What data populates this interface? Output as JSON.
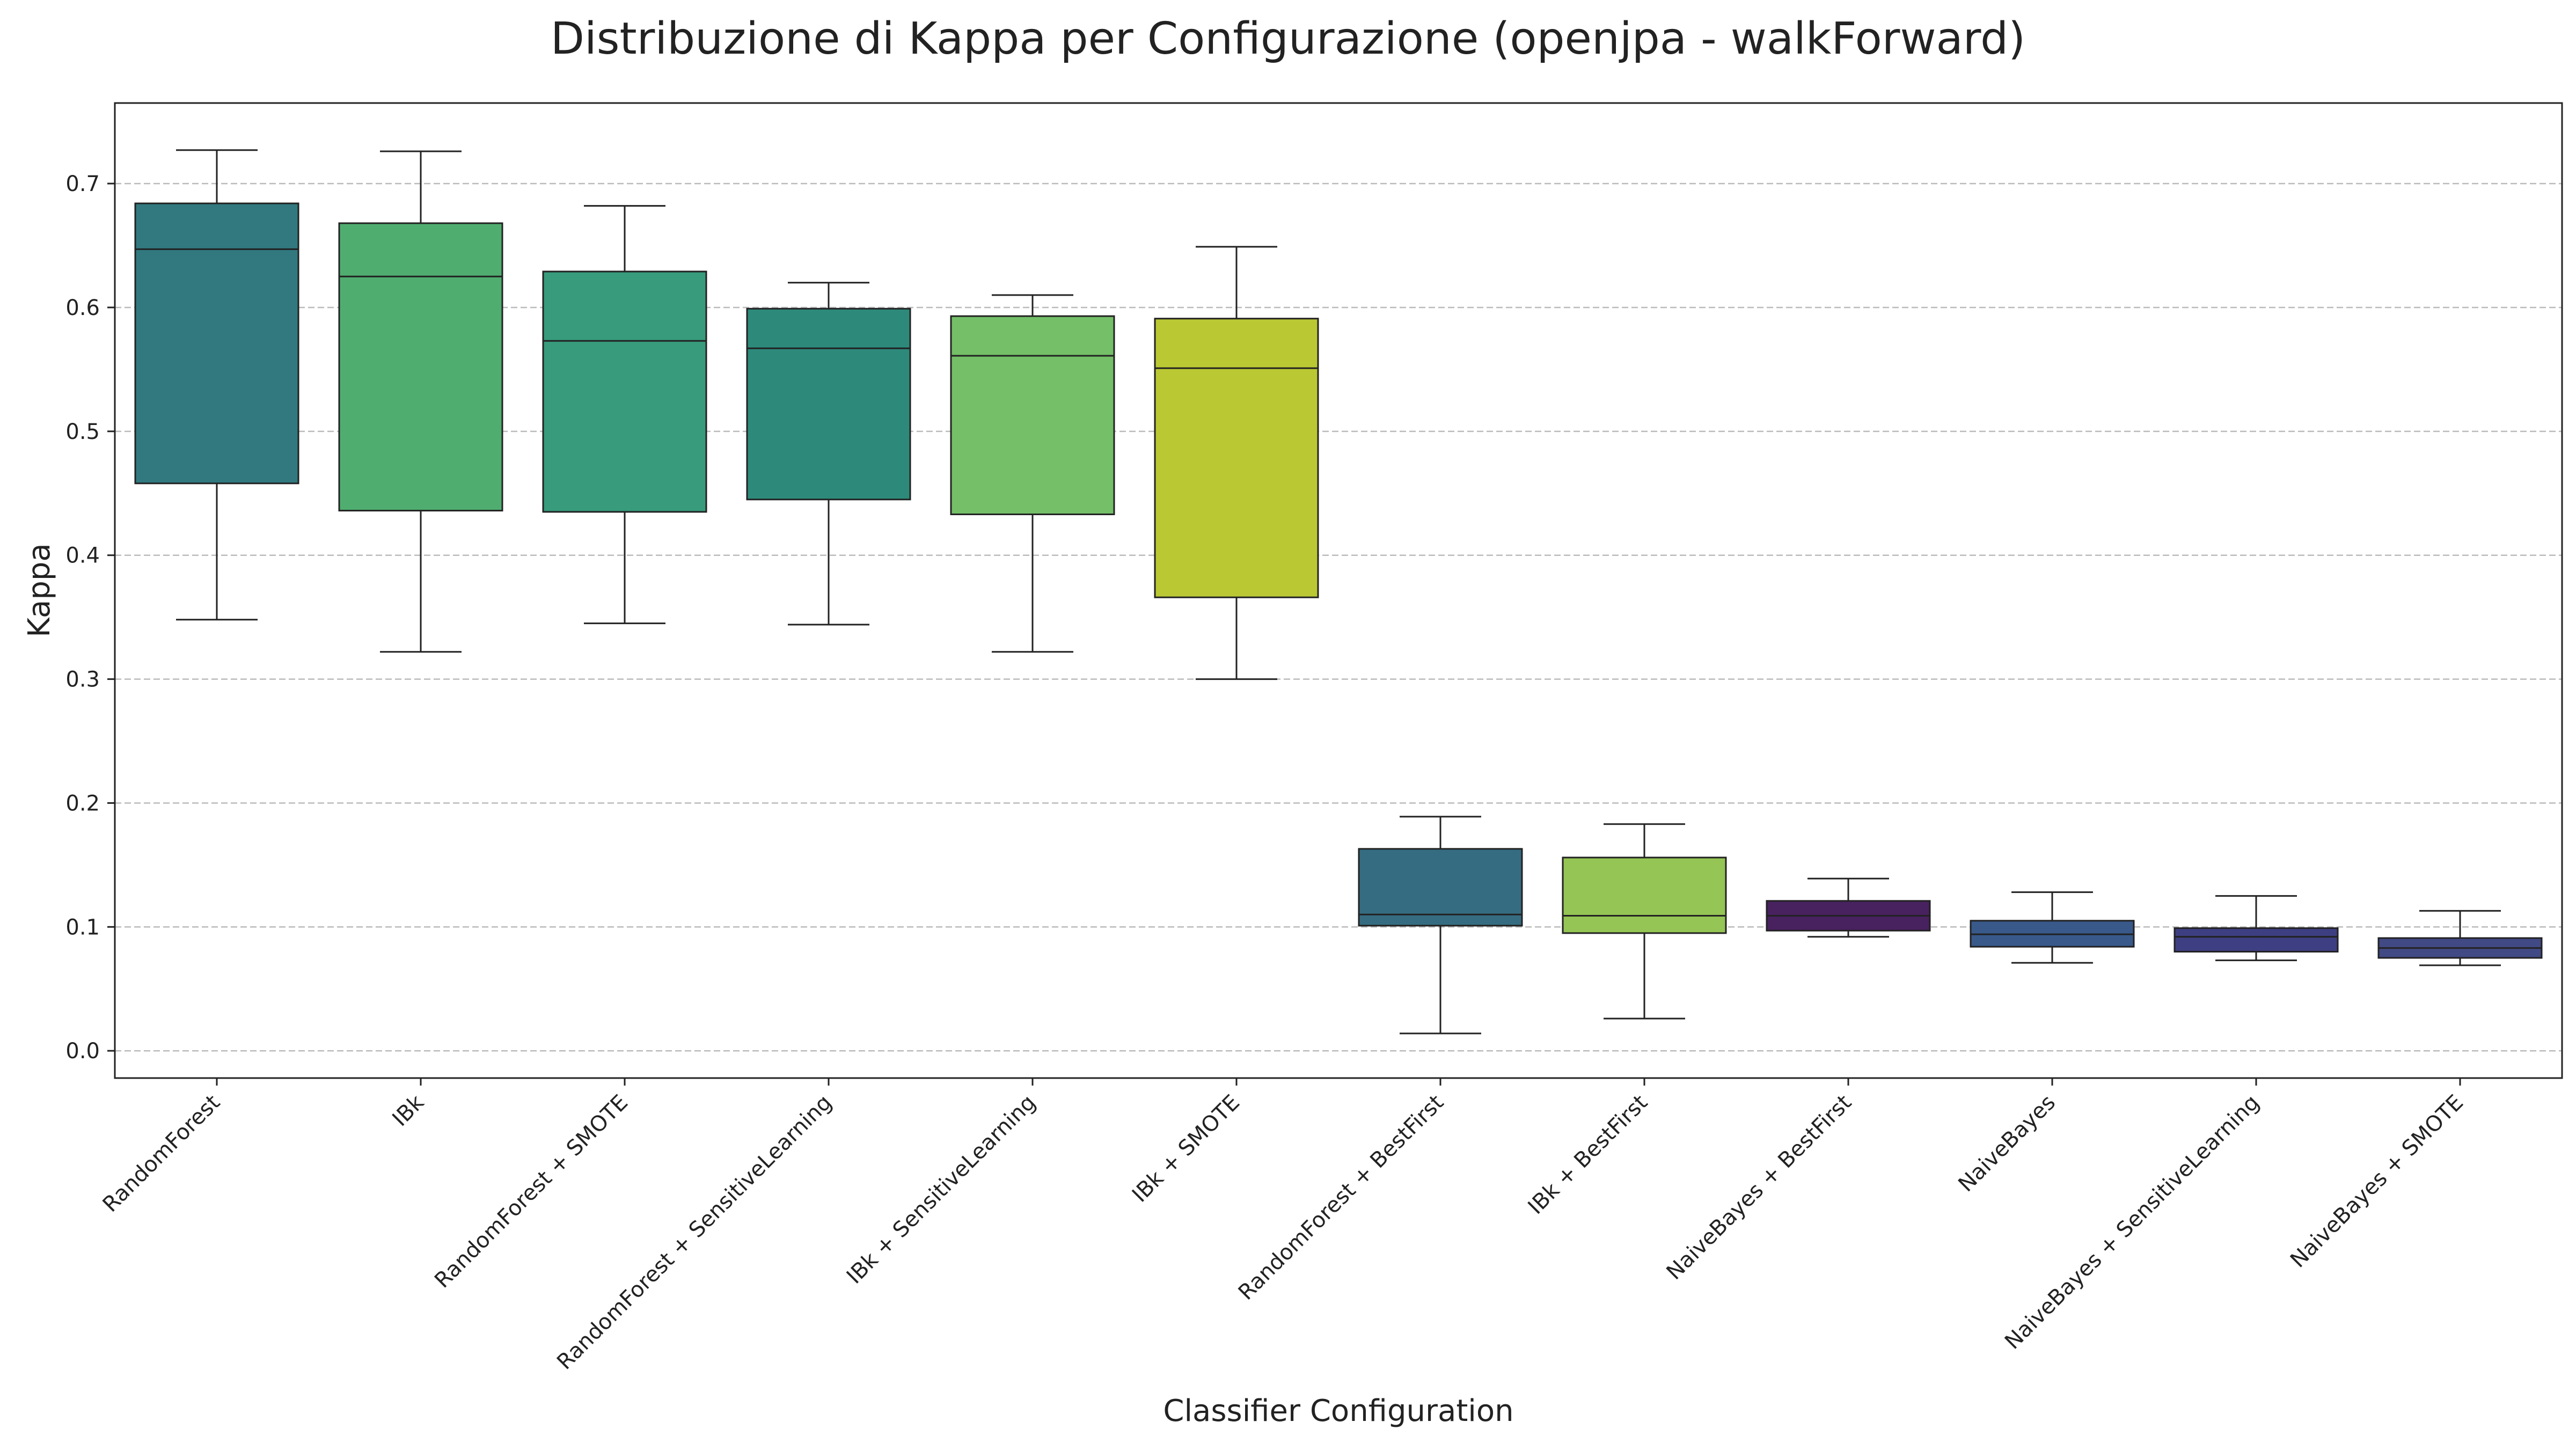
{
  "chart_data": {
    "type": "box",
    "title": "Distribuzione di Kappa per Configurazione (openjpa - walkForward)",
    "xlabel": "Classifier Configuration",
    "ylabel": "Kappa",
    "ylim": [
      -0.022,
      0.765
    ],
    "yticks": [
      0.0,
      0.1,
      0.2,
      0.3,
      0.4,
      0.5,
      0.6,
      0.7
    ],
    "ytick_labels": [
      "0.0",
      "0.1",
      "0.2",
      "0.3",
      "0.4",
      "0.5",
      "0.6",
      "0.7"
    ],
    "grid": "horizontal dashed",
    "categories": [
      "RandomForest",
      "IBk",
      "RandomForest + SMOTE",
      "RandomForest + SensitiveLearning",
      "IBk + SensitiveLearning",
      "IBk + SMOTE",
      "RandomForest + BestFirst",
      "IBk + BestFirst",
      "NaiveBayes + BestFirst",
      "NaiveBayes",
      "NaiveBayes + SensitiveLearning",
      "NaiveBayes + SMOTE"
    ],
    "boxes": [
      {
        "whisker_low": 0.348,
        "q1": 0.458,
        "median": 0.647,
        "q3": 0.684,
        "whisker_high": 0.727,
        "color": "#31797f"
      },
      {
        "whisker_low": 0.322,
        "q1": 0.436,
        "median": 0.625,
        "q3": 0.668,
        "whisker_high": 0.726,
        "color": "#50ad70"
      },
      {
        "whisker_low": 0.345,
        "q1": 0.435,
        "median": 0.573,
        "q3": 0.629,
        "whisker_high": 0.682,
        "color": "#379b7c"
      },
      {
        "whisker_low": 0.344,
        "q1": 0.445,
        "median": 0.567,
        "q3": 0.599,
        "whisker_high": 0.62,
        "color": "#2d8a7b"
      },
      {
        "whisker_low": 0.322,
        "q1": 0.433,
        "median": 0.561,
        "q3": 0.593,
        "whisker_high": 0.61,
        "color": "#74bf68"
      },
      {
        "whisker_low": 0.3,
        "q1": 0.366,
        "median": 0.551,
        "q3": 0.591,
        "whisker_high": 0.649,
        "color": "#bac833"
      },
      {
        "whisker_low": 0.014,
        "q1": 0.101,
        "median": 0.11,
        "q3": 0.163,
        "whisker_high": 0.189,
        "color": "#366c81"
      },
      {
        "whisker_low": 0.026,
        "q1": 0.095,
        "median": 0.109,
        "q3": 0.156,
        "whisker_high": 0.183,
        "color": "#95c554"
      },
      {
        "whisker_low": 0.092,
        "q1": 0.097,
        "median": 0.109,
        "q3": 0.121,
        "whisker_high": 0.139,
        "color": "#48215f"
      },
      {
        "whisker_low": 0.071,
        "q1": 0.084,
        "median": 0.094,
        "q3": 0.105,
        "whisker_high": 0.128,
        "color": "#38598a"
      },
      {
        "whisker_low": 0.073,
        "q1": 0.08,
        "median": 0.092,
        "q3": 0.099,
        "whisker_high": 0.125,
        "color": "#3e3f82"
      },
      {
        "whisker_low": 0.069,
        "q1": 0.075,
        "median": 0.083,
        "q3": 0.091,
        "whisker_high": 0.113,
        "color": "#414a85"
      }
    ]
  }
}
